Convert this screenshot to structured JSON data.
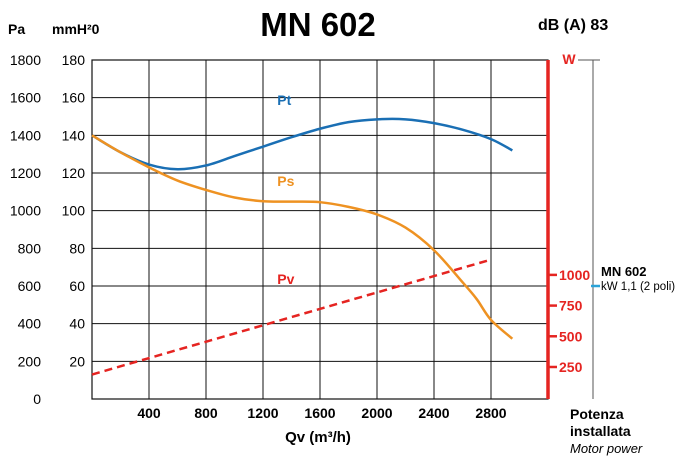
{
  "chart_data": {
    "type": "line",
    "title": "MN 602",
    "sound_level": "dB (A) 83",
    "y_unit_left": "Pa",
    "y_unit_right": "mmH²0",
    "xlabel": "Qv (m³/h)",
    "xlim": [
      0,
      3200
    ],
    "x_ticks": [
      400,
      800,
      1200,
      1600,
      2000,
      2400,
      2800
    ],
    "x_tick_labels": [
      "400",
      "800",
      "1200",
      "1600",
      "2000",
      "2400",
      "2800"
    ],
    "ylim_pa": [
      0,
      1800
    ],
    "y_ticks_pa": [
      "0",
      "200",
      "400",
      "600",
      "800",
      "1000",
      "1200",
      "1400",
      "1600",
      "1800"
    ],
    "y_ticks_mmh2o": [
      "20",
      "40",
      "60",
      "80",
      "100",
      "120",
      "140",
      "160",
      "180"
    ],
    "power_axis": {
      "unit": "W",
      "ticks": [
        250,
        500,
        750,
        1000
      ],
      "tick_labels": [
        "250",
        "500",
        "750",
        "1000"
      ],
      "pa_at_250": 170,
      "pa_per_250w": 163
    },
    "grid": true,
    "series": [
      {
        "name": "Pt",
        "color": "#1a6fb4",
        "style": "solid",
        "x": [
          0,
          200,
          400,
          600,
          800,
          1000,
          1200,
          1400,
          1600,
          1800,
          2000,
          2200,
          2400,
          2600,
          2800,
          2950
        ],
        "y": [
          1400,
          1310,
          1245,
          1220,
          1240,
          1290,
          1340,
          1390,
          1435,
          1470,
          1485,
          1485,
          1465,
          1430,
          1380,
          1320
        ]
      },
      {
        "name": "Ps",
        "color": "#ee9222",
        "style": "solid",
        "x": [
          0,
          200,
          400,
          600,
          800,
          1000,
          1200,
          1400,
          1600,
          1800,
          2000,
          2200,
          2400,
          2600,
          2700,
          2800,
          2950
        ],
        "y": [
          1400,
          1310,
          1230,
          1160,
          1110,
          1070,
          1050,
          1048,
          1045,
          1020,
          980,
          910,
          790,
          620,
          530,
          420,
          320
        ]
      },
      {
        "name": "Pv",
        "color": "#e52421",
        "style": "dashed",
        "x": [
          0,
          2800
        ],
        "y": [
          130,
          740
        ]
      }
    ],
    "motor": {
      "model": "MN 602",
      "spec": "kW 1,1 (2 poli)",
      "marker_pa": 600,
      "color": "#2aa3d8"
    },
    "footer": {
      "line1": "Potenza",
      "line2": "installata",
      "line3": "Motor power"
    }
  }
}
